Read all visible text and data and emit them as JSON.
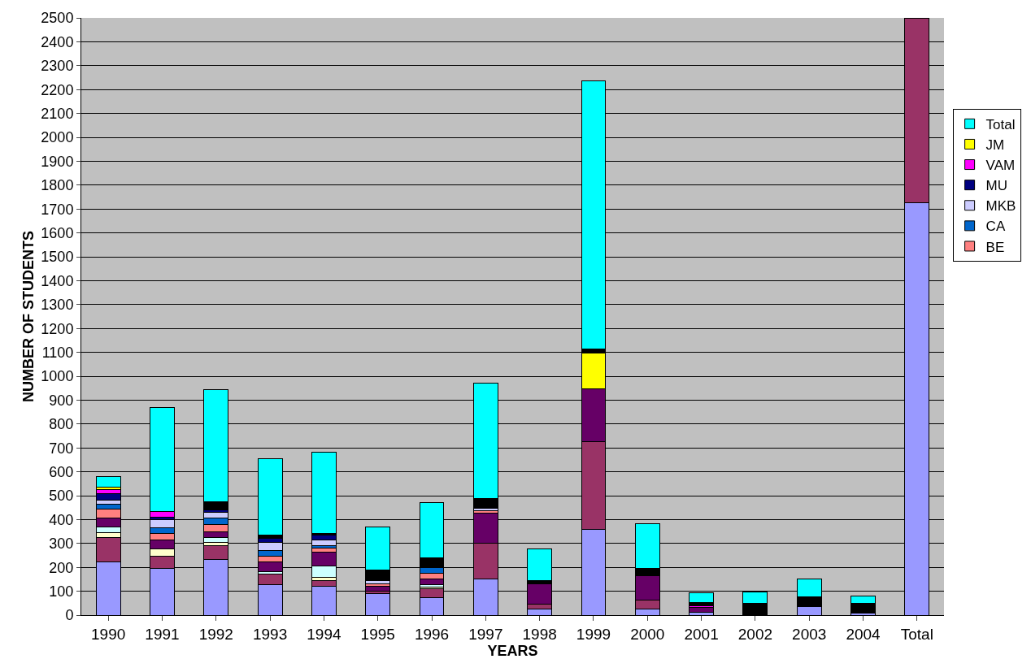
{
  "chart_data": {
    "type": "bar",
    "stacked": true,
    "xlabel": "YEARS",
    "ylabel": "NUMBER OF STUDENTS",
    "categories": [
      "1990",
      "1991",
      "1992",
      "1993",
      "1994",
      "1995",
      "1996",
      "1997",
      "1998",
      "1999",
      "2000",
      "2001",
      "2002",
      "2003",
      "2004",
      "Total"
    ],
    "series": [
      {
        "color": "#9999ff",
        "values": [
          223,
          197,
          234,
          128,
          120,
          90,
          72,
          151,
          25,
          359,
          24,
          13,
          null,
          37,
          10,
          1725
        ]
      },
      {
        "color": "#993366",
        "values": [
          102,
          49,
          57,
          44,
          23,
          10,
          37,
          149,
          20,
          366,
          40,
          null,
          null,
          null,
          null,
          775
        ]
      },
      {
        "color": "#ffffcc",
        "values": [
          20,
          30,
          15,
          null,
          15,
          null,
          10,
          null,
          null,
          null,
          null,
          null,
          null,
          null,
          null,
          null
        ]
      },
      {
        "color": "#ccffff",
        "values": [
          25,
          null,
          19,
          10,
          47,
          null,
          10,
          null,
          null,
          null,
          null,
          null,
          null,
          null,
          null,
          null
        ]
      },
      {
        "color": "#660066",
        "values": [
          35,
          40,
          25,
          40,
          58,
          20,
          22,
          126,
          85,
          223,
          102,
          20,
          null,
          null,
          null,
          null
        ]
      },
      {
        "name": "BE",
        "color": "#ff8080",
        "values": [
          40,
          25,
          29,
          25,
          17,
          10,
          25,
          10,
          null,
          null,
          null,
          null,
          null,
          null,
          null,
          null
        ]
      },
      {
        "name": "CA",
        "color": "#0066cc",
        "values": [
          20,
          26,
          29,
          23,
          10,
          null,
          24,
          null,
          null,
          null,
          null,
          null,
          null,
          null,
          null,
          null
        ]
      },
      {
        "name": "MKB",
        "color": "#ccccff",
        "values": [
          17,
          34,
          22,
          34,
          24,
          15,
          null,
          10,
          null,
          null,
          null,
          null,
          null,
          null,
          null,
          null
        ]
      },
      {
        "name": "MU",
        "color": "#000080",
        "values": [
          28,
          10,
          12,
          16,
          21,
          null,
          null,
          null,
          null,
          null,
          null,
          null,
          null,
          null,
          null,
          null
        ]
      },
      {
        "name": "VAM",
        "color": "#ff00ff",
        "values": [
          15,
          22,
          null,
          null,
          null,
          null,
          null,
          null,
          null,
          null,
          null,
          7,
          null,
          null,
          null,
          null
        ]
      },
      {
        "name": "JM",
        "color": "#ffff00",
        "values": [
          10,
          null,
          null,
          null,
          null,
          null,
          null,
          null,
          null,
          148,
          null,
          null,
          null,
          null,
          null,
          null
        ]
      },
      {
        "color": "#000000",
        "values": [
          null,
          null,
          33,
          15,
          8,
          44,
          40,
          42,
          14,
          19,
          28,
          12,
          49,
          38,
          39,
          null
        ]
      },
      {
        "name": "Total",
        "color": "#00ffff",
        "values": [
          45,
          437,
          470,
          320,
          340,
          181,
          230,
          482,
          133,
          1120,
          188,
          43,
          47,
          76,
          32,
          null
        ]
      }
    ],
    "ylim": [
      0,
      2500
    ],
    "yticks": [
      0,
      100,
      200,
      300,
      400,
      500,
      600,
      700,
      800,
      900,
      1000,
      1100,
      1200,
      1300,
      1400,
      1500,
      1600,
      1700,
      1800,
      1900,
      2000,
      2100,
      2200,
      2300,
      2400,
      2500
    ],
    "grid": "y",
    "legend": "right"
  }
}
